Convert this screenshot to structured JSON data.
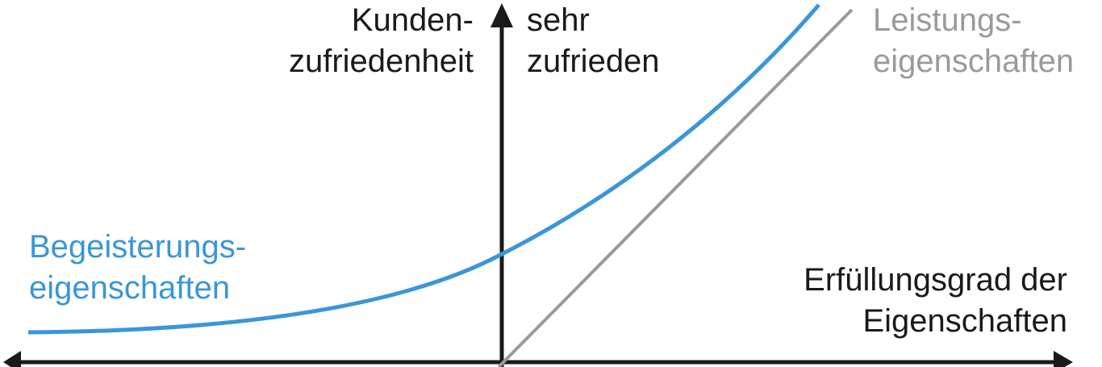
{
  "colors": {
    "axis": "#1a1a1a",
    "begeisterung": "#3a96d8",
    "leistung": "#9a9a9a"
  },
  "labels": {
    "y_axis_line1": "Kunden-",
    "y_axis_line2": "zufriedenheit",
    "top_line1": "sehr",
    "top_line2": "zufrieden",
    "leistung_line1": "Leistungs-",
    "leistung_line2": "eigenschaften",
    "begeisterung_line1": "Begeisterungs-",
    "begeisterung_line2": "eigenschaften",
    "x_axis_line1": "Erfüllungsgrad der",
    "x_axis_line2": "Eigenschaften"
  }
}
